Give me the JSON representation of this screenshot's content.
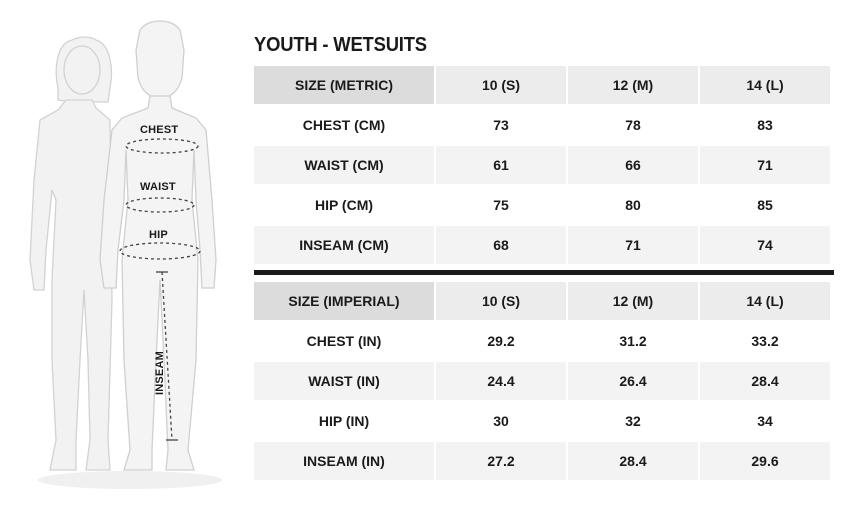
{
  "title": "YOUTH - WETSUITS",
  "figure": {
    "labels": {
      "chest": "CHEST",
      "waist": "WAIST",
      "hip": "HIP",
      "inseam": "INSEAM"
    },
    "icon": "child-body-measurement-illustration"
  },
  "metric": {
    "header": [
      "SIZE (METRIC)",
      "10 (S)",
      "12 (M)",
      "14 (L)"
    ],
    "rows": [
      {
        "label": "CHEST (CM)",
        "values": [
          "73",
          "78",
          "83"
        ]
      },
      {
        "label": "WAIST (CM)",
        "values": [
          "61",
          "66",
          "71"
        ]
      },
      {
        "label": "HIP (CM)",
        "values": [
          "75",
          "80",
          "85"
        ]
      },
      {
        "label": "INSEAM (CM)",
        "values": [
          "68",
          "71",
          "74"
        ]
      }
    ]
  },
  "imperial": {
    "header": [
      "SIZE (IMPERIAL)",
      "10 (S)",
      "12 (M)",
      "14 (L)"
    ],
    "rows": [
      {
        "label": "CHEST (IN)",
        "values": [
          "29.2",
          "31.2",
          "33.2"
        ]
      },
      {
        "label": "WAIST (IN)",
        "values": [
          "24.4",
          "26.4",
          "28.4"
        ]
      },
      {
        "label": "HIP (IN)",
        "values": [
          "30",
          "32",
          "34"
        ]
      },
      {
        "label": "INSEAM (IN)",
        "values": [
          "27.2",
          "28.4",
          "29.6"
        ]
      }
    ]
  }
}
